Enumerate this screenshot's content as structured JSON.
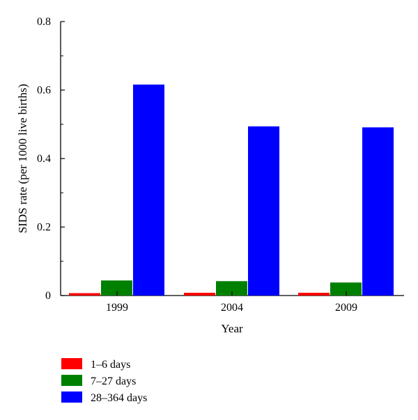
{
  "chart_data": {
    "type": "bar",
    "title": "",
    "xlabel": "Year",
    "ylabel": "SIDS rate (per 1000 live births)",
    "categories": [
      "1999",
      "2004",
      "2009"
    ],
    "ylim": [
      0,
      0.8
    ],
    "yticks": [
      0,
      0.2,
      0.4,
      0.6,
      0.8
    ],
    "ytick_labels": [
      "0",
      "0.2",
      "0.4",
      "0.6",
      "0.8"
    ],
    "grid": false,
    "legend_position": "bottom-left",
    "series": [
      {
        "name": "1–6 days",
        "color": "#ff0000",
        "values": [
          0.007,
          0.008,
          0.008
        ]
      },
      {
        "name": "7–27 days",
        "color": "#008000",
        "values": [
          0.044,
          0.042,
          0.038
        ]
      },
      {
        "name": "28–364 days",
        "color": "#0000ff",
        "values": [
          0.616,
          0.494,
          0.491
        ]
      }
    ]
  }
}
